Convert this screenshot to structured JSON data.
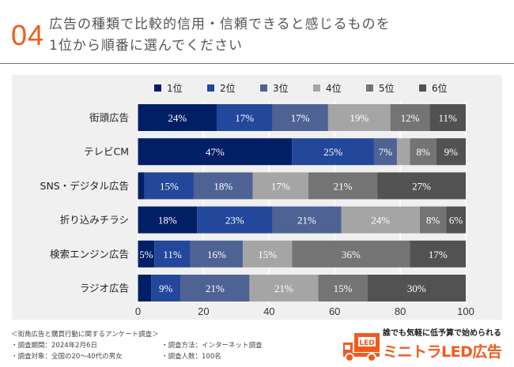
{
  "header": {
    "number": "04",
    "question_line1": "広告の種類で比較的信用・信頼できると感じるものを",
    "question_line2": "1位から順番に選んでください"
  },
  "chart_data": {
    "type": "bar",
    "orientation": "horizontal",
    "stacked": true,
    "categories": [
      "街頭広告",
      "テレビCM",
      "SNS・デジタル広告",
      "折り込みチラシ",
      "検索エンジン広告",
      "ラジオ広告"
    ],
    "series": [
      {
        "name": "1位",
        "color": "#001f66",
        "values": [
          24,
          47,
          2,
          18,
          5,
          4
        ],
        "labels": [
          "24%",
          "47%",
          "",
          "18%",
          "5%",
          ""
        ]
      },
      {
        "name": "2位",
        "color": "#23479b",
        "values": [
          17,
          25,
          15,
          23,
          11,
          9
        ],
        "labels": [
          "17%",
          "25%",
          "15%",
          "23%",
          "11%",
          "9%"
        ]
      },
      {
        "name": "3位",
        "color": "#4e6294",
        "values": [
          17,
          7,
          18,
          21,
          16,
          21
        ],
        "labels": [
          "17%",
          "7%",
          "18%",
          "21%",
          "16%",
          "21%"
        ]
      },
      {
        "name": "4位",
        "color": "#a5a5a5",
        "values": [
          19,
          4,
          17,
          24,
          15,
          21
        ],
        "labels": [
          "19%",
          "",
          "17%",
          "24%",
          "15%",
          "21%"
        ]
      },
      {
        "name": "5位",
        "color": "#747474",
        "values": [
          12,
          8,
          21,
          8,
          36,
          15
        ],
        "labels": [
          "12%",
          "8%",
          "21%",
          "8%",
          "36%",
          "15%"
        ]
      },
      {
        "name": "6位",
        "color": "#525252",
        "values": [
          11,
          9,
          27,
          6,
          17,
          30
        ],
        "labels": [
          "11%",
          "9%",
          "27%",
          "6%",
          "17%",
          "30%"
        ]
      }
    ],
    "xlim": [
      0,
      100
    ],
    "xticks": [
      "0",
      "20",
      "40",
      "60",
      "80",
      "100"
    ],
    "grid": true,
    "legend": "top"
  },
  "notes": {
    "title": "＜街角広告と購買行動に関するアンケート調査＞",
    "period": "・調査期間：2024年2月6日",
    "method": "・調査方法：インターネット調査",
    "target": "・調査対象：全国の20〜40代の男女",
    "count": "・調査人数：100名"
  },
  "logo": {
    "tagline": "誰でも気軽に低予算で始められる",
    "name": "ミニトラLED広告",
    "truck_text": "LED"
  }
}
